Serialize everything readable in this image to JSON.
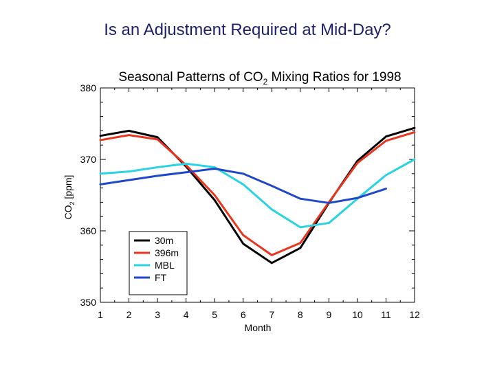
{
  "slide": {
    "title": "Is an Adjustment Required at Mid-Day?"
  },
  "chart_data": {
    "type": "line",
    "title": "Seasonal Patterns of CO",
    "title_sub": "2",
    "title_rest": " Mixing Ratios for 1998",
    "xlabel": "Month",
    "ylabel": "CO",
    "ylabel_sub": "2",
    "ylabel_rest": " [ppm]",
    "x": [
      1,
      2,
      3,
      4,
      5,
      6,
      7,
      8,
      9,
      10,
      11,
      12
    ],
    "xlim": [
      1,
      12
    ],
    "ylim": [
      350,
      380
    ],
    "xticks": [
      1,
      2,
      3,
      4,
      5,
      6,
      7,
      8,
      9,
      10,
      11,
      12
    ],
    "yticks": [
      350,
      360,
      370,
      380
    ],
    "grid": false,
    "legend_position": "lower-left",
    "series": [
      {
        "name": "30m",
        "color": "#000000",
        "values": [
          373.3,
          374.0,
          373.1,
          369.0,
          364.3,
          358.2,
          355.5,
          357.6,
          363.9,
          369.8,
          373.2,
          374.4
        ]
      },
      {
        "name": "396m",
        "color": "#e8351e",
        "values": [
          372.7,
          373.4,
          372.8,
          369.2,
          365.0,
          359.4,
          356.6,
          358.3,
          364.0,
          369.5,
          372.6,
          373.8
        ]
      },
      {
        "name": "MBL",
        "color": "#29d3e3",
        "values": [
          368.0,
          368.3,
          368.9,
          369.4,
          368.9,
          366.5,
          363.0,
          360.5,
          361.1,
          364.5,
          367.8,
          370.0
        ]
      },
      {
        "name": "FT",
        "color": "#1f48c9",
        "values": [
          366.5,
          367.1,
          367.7,
          368.2,
          368.7,
          368.0,
          366.3,
          364.5,
          363.9,
          364.6,
          365.9,
          null
        ]
      }
    ]
  }
}
